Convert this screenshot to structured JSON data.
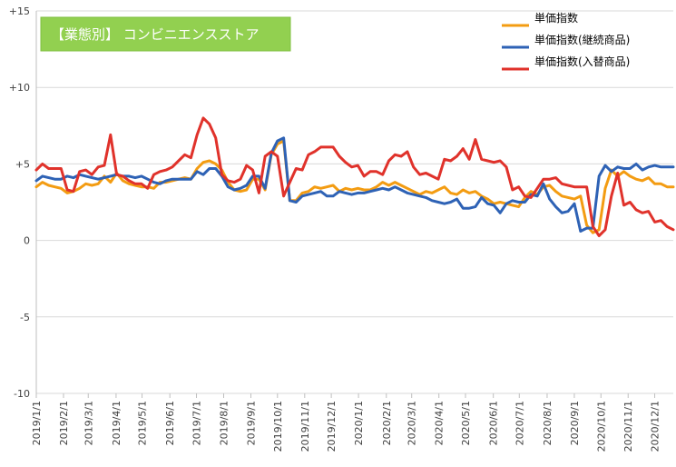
{
  "chart_data": {
    "type": "line",
    "title": "【業態別】 コンビニエンスストア",
    "xlabel": "",
    "ylabel": "",
    "ylim": [
      -10,
      15
    ],
    "y_ticks": [
      {
        "value": 15,
        "label": "+15"
      },
      {
        "value": 10,
        "label": "+10"
      },
      {
        "value": 5,
        "label": "+5"
      },
      {
        "value": 0,
        "label": "0"
      },
      {
        "value": -5,
        "label": "-5"
      },
      {
        "value": -10,
        "label": "-10"
      }
    ],
    "x_ticks": [
      {
        "index": 0,
        "label": "2019/1/1"
      },
      {
        "index": 4.4,
        "label": "2019/2/1"
      },
      {
        "index": 8.4,
        "label": "2019/3/1"
      },
      {
        "index": 12.9,
        "label": "2019/4/1"
      },
      {
        "index": 17.1,
        "label": "2019/5/1"
      },
      {
        "index": 21.6,
        "label": "2019/6/1"
      },
      {
        "index": 25.9,
        "label": "2019/7/1"
      },
      {
        "index": 30.3,
        "label": "2019/8/1"
      },
      {
        "index": 34.7,
        "label": "2019/9/1"
      },
      {
        "index": 39.0,
        "label": "2019/10/1"
      },
      {
        "index": 43.4,
        "label": "2019/11/1"
      },
      {
        "index": 47.7,
        "label": "2019/12/1"
      },
      {
        "index": 52.1,
        "label": "2020/1/1"
      },
      {
        "index": 56.6,
        "label": "2020/2/1"
      },
      {
        "index": 60.7,
        "label": "2020/3/1"
      },
      {
        "index": 65.1,
        "label": "2020/4/1"
      },
      {
        "index": 69.4,
        "label": "2020/5/1"
      },
      {
        "index": 73.9,
        "label": "2020/6/1"
      },
      {
        "index": 78.1,
        "label": "2020/7/1"
      },
      {
        "index": 82.6,
        "label": "2020/8/1"
      },
      {
        "index": 87.0,
        "label": "2020/9/1"
      },
      {
        "index": 91.3,
        "label": "2020/10/1"
      },
      {
        "index": 95.7,
        "label": "2020/11/1"
      },
      {
        "index": 100.0,
        "label": "2020/12/1"
      }
    ],
    "grid": true,
    "legend_position": "top-right",
    "series": [
      {
        "name": "単価指数",
        "color": "#f39c12",
        "values": [
          3.5,
          3.8,
          3.6,
          3.5,
          3.4,
          3.1,
          3.2,
          3.4,
          3.7,
          3.6,
          3.7,
          4.2,
          3.8,
          4.4,
          3.9,
          3.7,
          3.6,
          3.5,
          3.5,
          3.4,
          3.8,
          3.8,
          3.9,
          4.0,
          4.1,
          4.0,
          4.7,
          5.1,
          5.2,
          5.0,
          4.6,
          3.8,
          3.3,
          3.2,
          3.3,
          4.0,
          4.0,
          3.3,
          5.6,
          6.3,
          6.5,
          2.6,
          2.6,
          3.1,
          3.2,
          3.5,
          3.4,
          3.5,
          3.6,
          3.2,
          3.4,
          3.3,
          3.4,
          3.3,
          3.3,
          3.5,
          3.8,
          3.6,
          3.8,
          3.6,
          3.4,
          3.2,
          3.0,
          3.2,
          3.1,
          3.3,
          3.5,
          3.1,
          3.0,
          3.3,
          3.1,
          3.2,
          2.9,
          2.7,
          2.4,
          2.5,
          2.4,
          2.3,
          2.2,
          2.8,
          3.2,
          3.0,
          3.5,
          3.6,
          3.2,
          2.9,
          2.8,
          2.7,
          2.9,
          1.0,
          0.5,
          0.7,
          3.4,
          4.6,
          4.2,
          4.5,
          4.2,
          4.0,
          3.9,
          4.1,
          3.7,
          3.7,
          3.5,
          3.5
        ]
      },
      {
        "name": "単価指数(継続商品)",
        "color": "#2e62b5",
        "values": [
          3.9,
          4.2,
          4.1,
          4.0,
          4.0,
          4.2,
          4.1,
          4.3,
          4.2,
          4.1,
          4.0,
          4.1,
          4.2,
          4.3,
          4.2,
          4.2,
          4.1,
          4.2,
          4.0,
          3.8,
          3.7,
          3.9,
          4.0,
          4.0,
          4.0,
          4.0,
          4.5,
          4.3,
          4.7,
          4.7,
          4.2,
          3.5,
          3.3,
          3.4,
          3.6,
          4.2,
          4.2,
          3.4,
          5.7,
          6.5,
          6.7,
          2.6,
          2.5,
          2.9,
          3.0,
          3.1,
          3.2,
          2.9,
          2.9,
          3.2,
          3.1,
          3.0,
          3.1,
          3.1,
          3.2,
          3.3,
          3.4,
          3.3,
          3.5,
          3.3,
          3.1,
          3.0,
          2.9,
          2.8,
          2.6,
          2.5,
          2.4,
          2.5,
          2.7,
          2.1,
          2.1,
          2.2,
          2.8,
          2.4,
          2.3,
          1.8,
          2.4,
          2.6,
          2.5,
          2.5,
          3.0,
          2.9,
          3.7,
          2.7,
          2.2,
          1.8,
          1.9,
          2.4,
          0.6,
          0.8,
          0.8,
          4.2,
          4.9,
          4.5,
          4.8,
          4.7,
          4.7,
          5.0,
          4.6,
          4.8,
          4.9,
          4.8,
          4.8,
          4.8
        ]
      },
      {
        "name": "単価指数(入替商品)",
        "color": "#e0322b",
        "values": [
          4.6,
          5.0,
          4.7,
          4.7,
          4.7,
          3.3,
          3.2,
          4.5,
          4.6,
          4.3,
          4.8,
          4.9,
          6.9,
          4.3,
          4.2,
          3.9,
          3.7,
          3.7,
          3.4,
          4.3,
          4.5,
          4.6,
          4.8,
          5.2,
          5.6,
          5.4,
          6.9,
          8.0,
          7.6,
          6.7,
          4.3,
          3.9,
          3.8,
          4.0,
          4.9,
          4.6,
          3.1,
          5.5,
          5.8,
          5.5,
          2.9,
          3.8,
          4.7,
          4.6,
          5.6,
          5.8,
          6.1,
          6.1,
          6.1,
          5.5,
          5.1,
          4.8,
          4.9,
          4.2,
          4.5,
          4.5,
          4.3,
          5.2,
          5.6,
          5.5,
          5.8,
          4.8,
          4.3,
          4.4,
          4.2,
          4.0,
          5.3,
          5.2,
          5.5,
          6.0,
          5.3,
          6.6,
          5.3,
          5.2,
          5.1,
          5.2,
          4.8,
          3.3,
          3.5,
          2.9,
          2.8,
          3.4,
          4.0,
          4.0,
          4.1,
          3.7,
          3.6,
          3.5,
          3.5,
          3.5,
          0.9,
          0.3,
          0.7,
          2.9,
          4.4,
          2.3,
          2.5,
          2.0,
          1.8,
          1.9,
          1.2,
          1.3,
          0.9,
          0.7
        ]
      }
    ]
  }
}
